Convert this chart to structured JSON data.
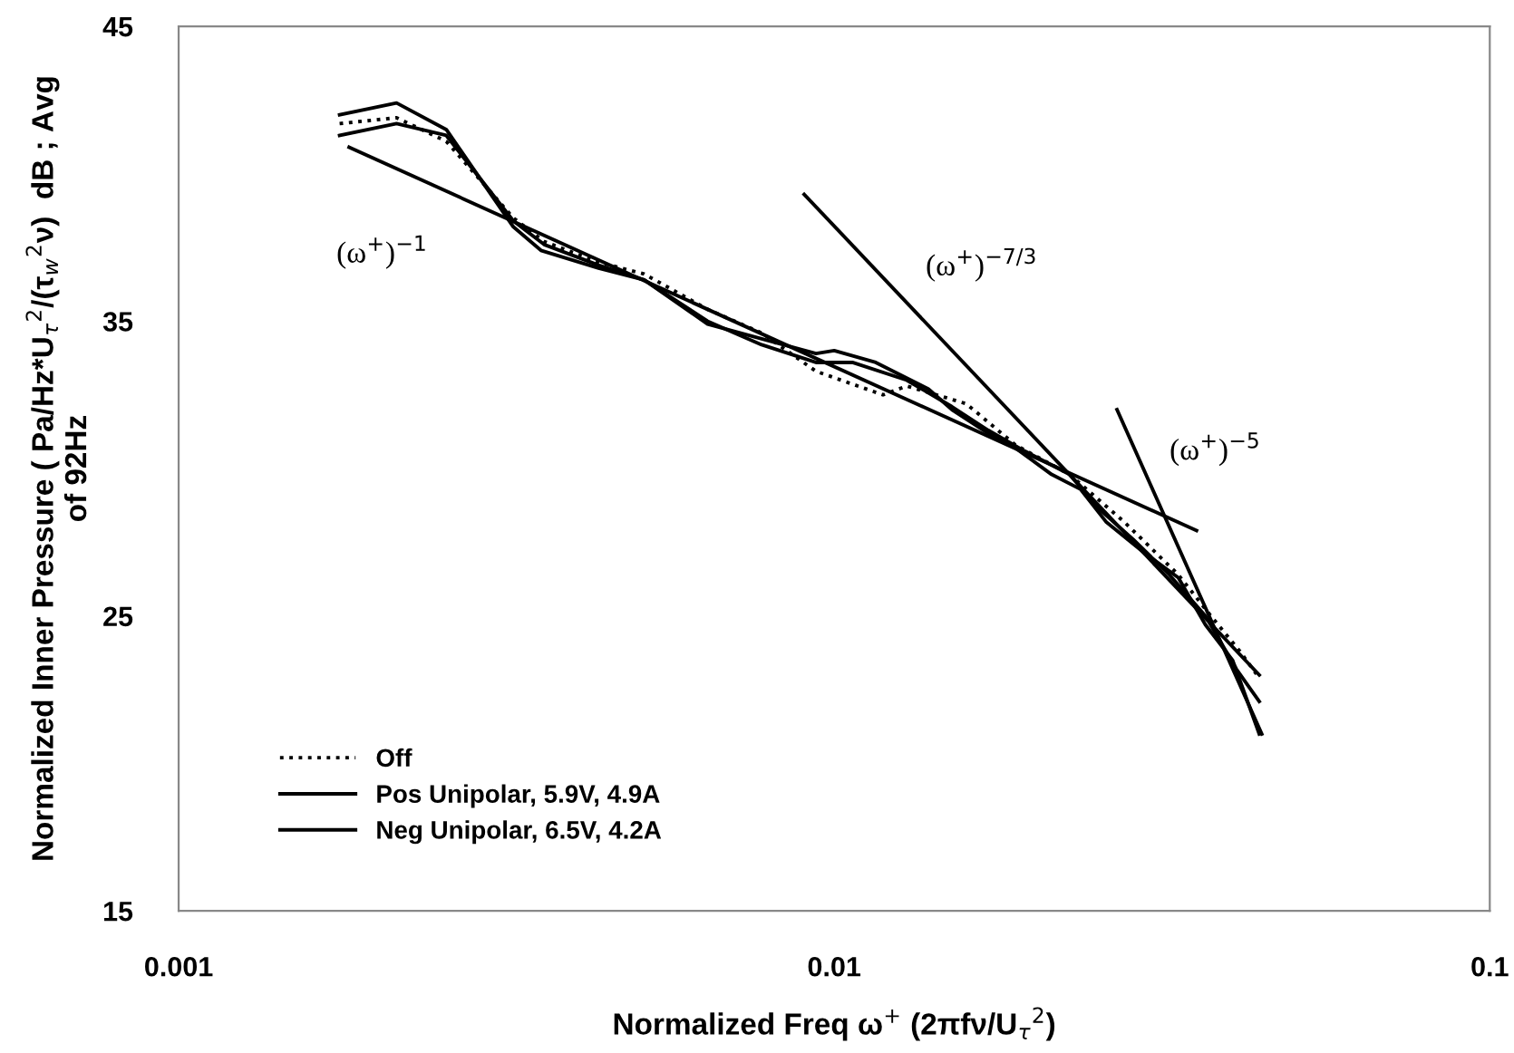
{
  "chart_data": {
    "type": "line",
    "xlabel": "Normalized Freq ω$^{+}$ (2πfν/U$_{τ}$$^{2}$)",
    "ylabel": "Normalized Inner Pressure ( Pa/Hz*U$_{τ}$$^{2}$/(τ$_{w}$$^{2}$ν)  dB ; Avg\nof 92Hz",
    "log": "x",
    "xlim": [
      0.001,
      0.1
    ],
    "xticks": [
      0.001,
      0.01,
      0.1
    ],
    "ylim": [
      15,
      45
    ],
    "yticks": [
      15,
      25,
      35,
      45
    ],
    "grid": false,
    "legend": "bottom left",
    "series": [
      {
        "name": "Off",
        "color": "#000000",
        "line_style": "dotted",
        "x": [
          0.00176,
          0.00215,
          0.00256,
          0.00324,
          0.00361,
          0.00437,
          0.00513,
          0.00641,
          0.00775,
          0.00938,
          0.01187,
          0.0129,
          0.0159,
          0.0189,
          0.02286,
          0.02767,
          0.03349,
          0.03755,
          0.04158,
          0.0445
        ],
        "values": [
          41.7,
          41.9,
          41.1,
          38.5,
          37.7,
          37.0,
          36.6,
          35.4,
          34.6,
          33.3,
          32.5,
          32.8,
          32.2,
          30.8,
          29.8,
          28.2,
          26.4,
          25.0,
          23.8,
          22.9
        ]
      },
      {
        "name": "Pos Unipolar, 5.9V, 4.9A",
        "color": "#000000",
        "line_style": "solid",
        "x": [
          0.00176,
          0.00215,
          0.00256,
          0.00324,
          0.00357,
          0.00437,
          0.00513,
          0.00641,
          0.00775,
          0.00938,
          0.01,
          0.01157,
          0.01392,
          0.01512,
          0.01717,
          0.0189,
          0.02146,
          0.02375,
          0.02597,
          0.0295,
          0.03349,
          0.03684,
          0.04053,
          0.0445
        ],
        "values": [
          42.0,
          42.4,
          41.5,
          38.2,
          37.4,
          36.8,
          36.4,
          34.9,
          34.4,
          33.9,
          34.0,
          33.6,
          32.7,
          32.0,
          31.2,
          30.7,
          29.8,
          29.3,
          28.2,
          27.2,
          26.3,
          24.7,
          23.5,
          21.0
        ]
      },
      {
        "name": "Neg Unipolar, 6.5V, 4.2A",
        "color": "#000000",
        "line_style": "solid",
        "x": [
          0.00176,
          0.00215,
          0.00256,
          0.00324,
          0.00361,
          0.00437,
          0.00513,
          0.00641,
          0.00775,
          0.00938,
          0.01066,
          0.0129,
          0.01512,
          0.01717,
          0.0195,
          0.02286,
          0.02515,
          0.02857,
          0.03245,
          0.03684,
          0.04106,
          0.0445
        ],
        "values": [
          41.3,
          41.7,
          41.3,
          38.4,
          37.6,
          36.9,
          36.4,
          35.0,
          34.2,
          33.6,
          33.6,
          33.0,
          32.1,
          31.3,
          30.6,
          29.8,
          28.7,
          27.6,
          26.4,
          25.0,
          23.2,
          22.1
        ]
      },
      {
        "type": "line",
        "color": "#000000",
        "line_style": "solid",
        "x": [
          0.00182,
          0.0357
        ],
        "values": [
          40.9,
          27.9
        ]
      },
      {
        "type": "line",
        "color": "#000000",
        "line_style": "solid",
        "x": [
          0.009,
          0.0445
        ],
        "values": [
          39.3,
          23.0
        ]
      },
      {
        "type": "line",
        "color": "#000000",
        "line_style": "solid",
        "x": [
          0.027,
          0.0449
        ],
        "values": [
          32.0,
          21.0
        ]
      }
    ],
    "annotations": [
      "(ω$^{+}$)$^{−1}$",
      "(ω$^{+}$)$^{−7/3}$",
      "(ω$^{+}$)$^{−5}$"
    ]
  }
}
